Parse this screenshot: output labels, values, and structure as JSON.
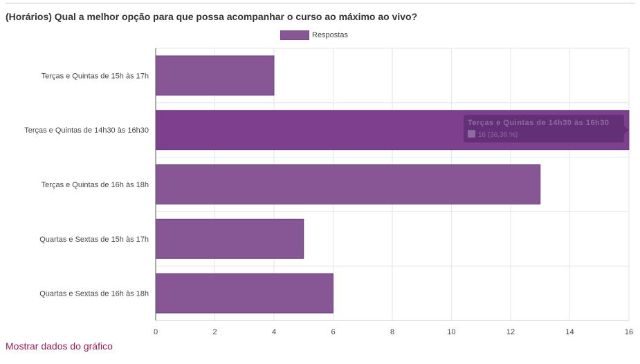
{
  "question": {
    "title": "(Horários) Qual a melhor opção para que possa acompanhar o curso ao máximo ao vivo?"
  },
  "link": {
    "show_data": "Mostrar dados do gráfico"
  },
  "colors": {
    "bar": "#875795",
    "bar_highlight": "#7f3f8f",
    "tooltip_bg": "#5e2e73",
    "grid": "#e6e6e6",
    "axis": "#555555"
  },
  "chart_data": {
    "type": "bar",
    "orientation": "horizontal",
    "title": "(Horários) Qual a melhor opção para que possa acompanhar o curso ao máximo ao vivo?",
    "categories": [
      "Terças e Quintas de 15h às 17h",
      "Terças e Quintas de 14h30 às 16h30",
      "Terças e Quintas de 16h às 18h",
      "Quartas e Sextas de 15h às 17h",
      "Quartas e Sextas de 16h às 18h"
    ],
    "series": [
      {
        "name": "Respostas",
        "values": [
          4,
          16,
          13,
          5,
          6
        ]
      }
    ],
    "xlim": [
      0,
      16
    ],
    "xticks": [
      0,
      2,
      4,
      6,
      8,
      10,
      12,
      14,
      16
    ],
    "grid": true,
    "legend": "top-center",
    "highlighted_index": 1,
    "tooltip": {
      "title": "Terças e Quintas de 14h30 às 16h30",
      "value_text": "16 (36,36 %)"
    }
  }
}
